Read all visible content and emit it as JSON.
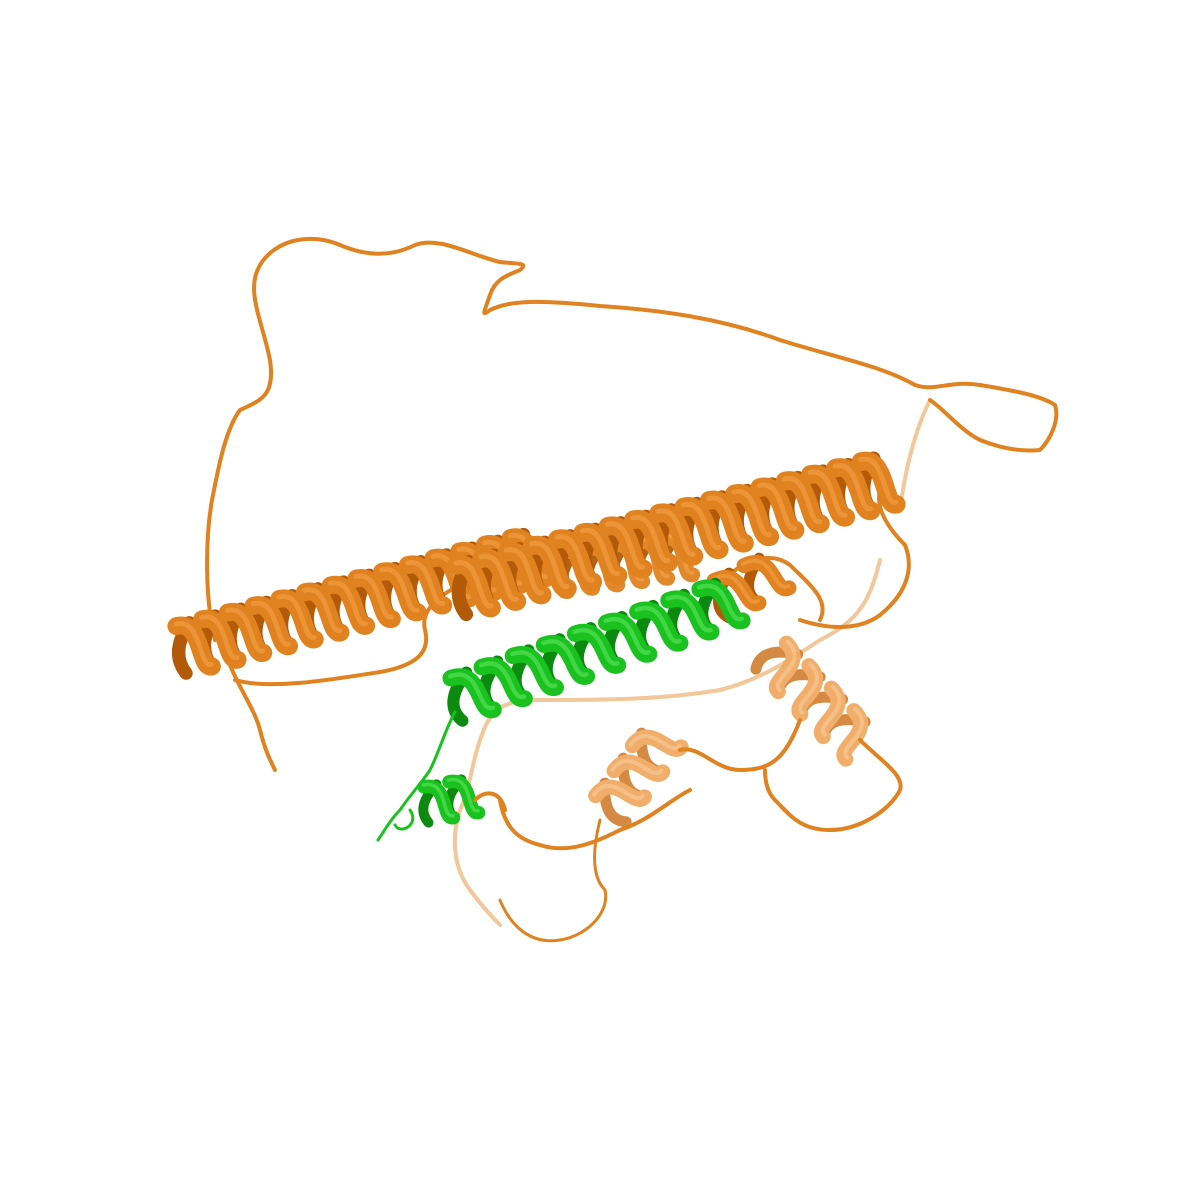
{
  "scene": {
    "background": "#ffffff",
    "representation": "cartoon",
    "chains": [
      {
        "id": "A",
        "color": "#e0821f",
        "highlight": "#f4a24a",
        "shadow": "#b35a08",
        "faded": "#f2c79a"
      },
      {
        "id": "B",
        "color": "#19c21f",
        "highlight": "#5fe55f",
        "shadow": "#0c8a10"
      }
    ]
  }
}
